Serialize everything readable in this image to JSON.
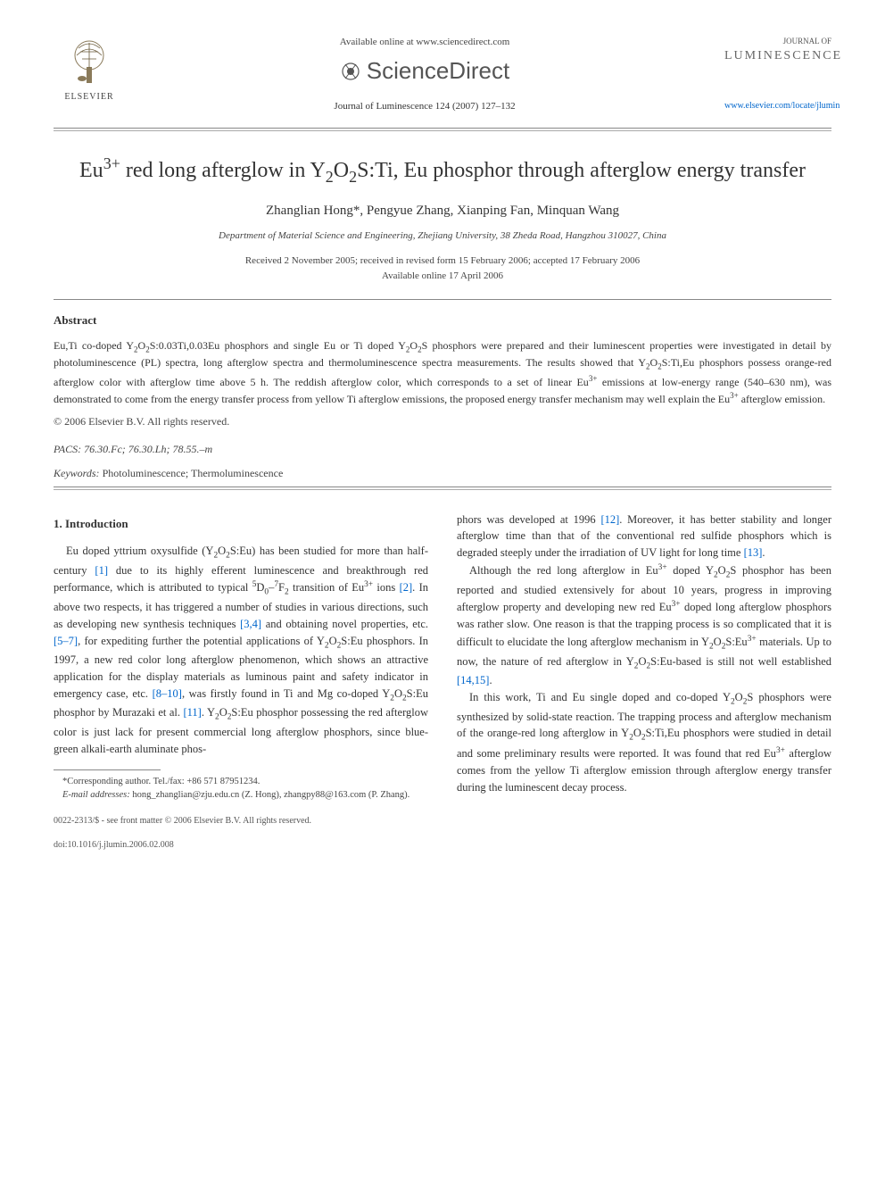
{
  "header": {
    "available_online": "Available online at www.sciencedirect.com",
    "sciencedirect_label": "ScienceDirect",
    "journal_citation": "Journal of Luminescence 124 (2007) 127–132",
    "elsevier_label": "ELSEVIER",
    "journal_logo_small": "JOURNAL OF",
    "journal_logo_main": "LUMINESCENCE",
    "journal_url": "www.elsevier.com/locate/jlumin"
  },
  "article": {
    "title_html": "Eu<sup>3+</sup> red long afterglow in Y<sub>2</sub>O<sub>2</sub>S:Ti, Eu phosphor through afterglow energy transfer",
    "authors": "Zhanglian Hong*, Pengyue Zhang, Xianping Fan, Minquan Wang",
    "affiliation": "Department of Material Science and Engineering, Zhejiang University, 38 Zheda Road, Hangzhou 310027, China",
    "received": "Received 2 November 2005; received in revised form 15 February 2006; accepted 17 February 2006",
    "available": "Available online 17 April 2006"
  },
  "abstract": {
    "heading": "Abstract",
    "body_html": "Eu,Ti co-doped Y<sub>2</sub>O<sub>2</sub>S:0.03Ti,0.03Eu phosphors and single Eu or Ti doped Y<sub>2</sub>O<sub>2</sub>S phosphors were prepared and their luminescent properties were investigated in detail by photoluminescence (PL) spectra, long afterglow spectra and thermoluminescence spectra measurements. The results showed that Y<sub>2</sub>O<sub>2</sub>S:Ti,Eu phosphors possess orange-red afterglow color with afterglow time above 5 h. The reddish afterglow color, which corresponds to a set of linear Eu<sup>3+</sup> emissions at low-energy range (540–630 nm), was demonstrated to come from the energy transfer process from yellow Ti afterglow emissions, the proposed energy transfer mechanism may well explain the Eu<sup>3+</sup> afterglow emission.",
    "copyright": "© 2006 Elsevier B.V. All rights reserved.",
    "pacs_label": "PACS:",
    "pacs_values": "76.30.Fc; 76.30.Lh; 78.55.–m",
    "keywords_label": "Keywords:",
    "keywords_values": "Photoluminescence; Thermoluminescence"
  },
  "body": {
    "intro_heading": "1. Introduction",
    "col1_p1_html": "Eu doped yttrium oxysulfide (Y<sub>2</sub>O<sub>2</sub>S:Eu) has been studied for more than half-century <span class=\"ref\">[1]</span> due to its highly efferent luminescence and breakthrough red performance, which is attributed to typical <sup>5</sup>D<sub>0</sub>–<sup>7</sup>F<sub>2</sub> transition of Eu<sup>3+</sup> ions <span class=\"ref\">[2]</span>. In above two respects, it has triggered a number of studies in various directions, such as developing new synthesis techniques <span class=\"ref\">[3,4]</span> and obtaining novel properties, etc. <span class=\"ref\">[5–7]</span>, for expediting further the potential applications of Y<sub>2</sub>O<sub>2</sub>S:Eu phosphors. In 1997, a new red color long afterglow phenomenon, which shows an attractive application for the display materials as luminous paint and safety indicator in emergency case, etc. <span class=\"ref\">[8–10]</span>, was firstly found in Ti and Mg co-doped Y<sub>2</sub>O<sub>2</sub>S:Eu phosphor by Murazaki et al. <span class=\"ref\">[11]</span>. Y<sub>2</sub>O<sub>2</sub>S:Eu phosphor possessing the red afterglow color is just lack for present commercial long afterglow phosphors, since blue-green alkali-earth aluminate phos-",
    "col2_p1_html": "phors was developed at 1996 <span class=\"ref\">[12]</span>. Moreover, it has better stability and longer afterglow time than that of the conventional red sulfide phosphors which is degraded steeply under the irradiation of UV light for long time <span class=\"ref\">[13]</span>.",
    "col2_p2_html": "Although the red long afterglow in Eu<sup>3+</sup> doped Y<sub>2</sub>O<sub>2</sub>S phosphor has been reported and studied extensively for about 10 years, progress in improving afterglow property and developing new red Eu<sup>3+</sup> doped long afterglow phosphors was rather slow. One reason is that the trapping process is so complicated that it is difficult to elucidate the long afterglow mechanism in Y<sub>2</sub>O<sub>2</sub>S:Eu<sup>3+</sup> materials. Up to now, the nature of red afterglow in Y<sub>2</sub>O<sub>2</sub>S:Eu-based is still not well established <span class=\"ref\">[14,15]</span>.",
    "col2_p3_html": "In this work, Ti and Eu single doped and co-doped Y<sub>2</sub>O<sub>2</sub>S phosphors were synthesized by solid-state reaction. The trapping process and afterglow mechanism of the orange-red long afterglow in Y<sub>2</sub>O<sub>2</sub>S:Ti,Eu phosphors were studied in detail and some preliminary results were reported. It was found that red Eu<sup>3+</sup> afterglow comes from the yellow Ti afterglow emission through afterglow energy transfer during the luminescent decay process."
  },
  "footnote": {
    "corresponding": "*Corresponding author. Tel./fax: +86 571 87951234.",
    "email_label": "E-mail addresses:",
    "emails": "hong_zhanglian@zju.edu.cn (Z. Hong), zhangpy88@163.com (P. Zhang)."
  },
  "bottom": {
    "line1": "0022-2313/$ - see front matter © 2006 Elsevier B.V. All rights reserved.",
    "line2": "doi:10.1016/j.jlumin.2006.02.008"
  },
  "style": {
    "link_color": "#0066cc",
    "text_color": "#333333",
    "rule_color": "#888888",
    "background_color": "#ffffff",
    "title_fontsize": 24,
    "body_fontsize": 12.5,
    "abstract_fontsize": 12
  }
}
